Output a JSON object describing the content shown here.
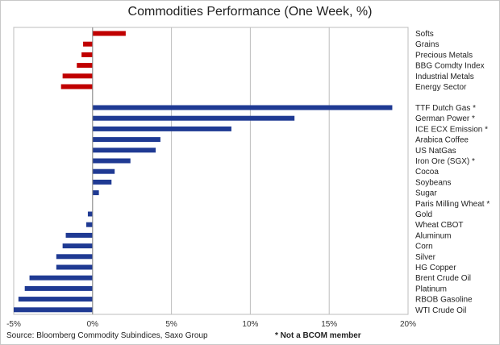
{
  "chart_data": {
    "type": "bar",
    "orientation": "horizontal",
    "title": "Commodities Performance (One Week, %)",
    "xlim": [
      -5,
      20
    ],
    "xticks": [
      -5,
      0,
      5,
      10,
      15,
      20
    ],
    "xtick_labels": [
      "-5%",
      "0%",
      "5%",
      "10%",
      "15%",
      "20%"
    ],
    "grid": "vertical",
    "groups": [
      {
        "color": "#c00000",
        "categories": [
          "Softs",
          "Grains",
          "Precious Metals",
          "BBG Comdty Index",
          "Industrial Metals",
          "Energy Sector"
        ],
        "values": [
          2.1,
          -0.6,
          -0.7,
          -1.0,
          -1.9,
          -2.0
        ]
      },
      {
        "color": "#1f3a93",
        "categories": [
          "TTF Dutch Gas *",
          "German Power *",
          "ICE ECX Emission *",
          "Arabica Coffee",
          "US NatGas",
          "Iron Ore (SGX) *",
          "Cocoa",
          "Soybeans",
          "Sugar",
          "Paris Milling Wheat *",
          "Gold",
          "Wheat CBOT",
          "Aluminum",
          "Corn",
          "Silver",
          "HG Copper",
          "Brent Crude Oil",
          "Platinum",
          "RBOB Gasoline",
          "WTI Crude Oil"
        ],
        "values": [
          19.0,
          12.8,
          8.8,
          4.3,
          4.0,
          2.4,
          1.4,
          1.2,
          0.4,
          0.0,
          -0.3,
          -0.4,
          -1.7,
          -1.9,
          -2.3,
          -2.3,
          -4.0,
          -4.3,
          -4.7,
          -5.0
        ]
      }
    ]
  },
  "footer": {
    "source": "Source: Bloomberg Commodity Subindices, Saxo Group",
    "note": "* Not a BCOM member"
  }
}
